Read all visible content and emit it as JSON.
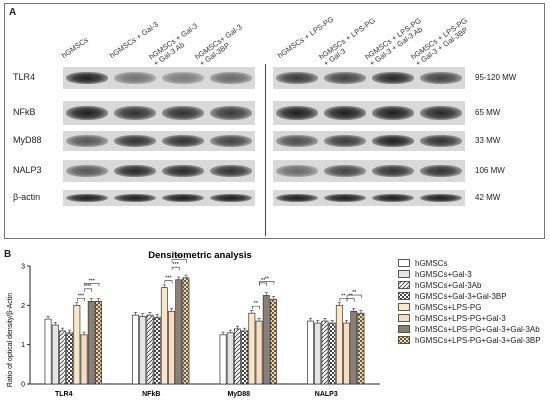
{
  "panel_a": {
    "label": "A",
    "lanes_left": [
      "hGMSCs",
      "hGMSCs + Gal-3",
      "hGMSCs + Gal-3\n+ Gal-3 Ab",
      "hGMSCs+ Gal-3\n+ Gal-3BP"
    ],
    "lanes_right": [
      "hGMSCs + LPS-PG",
      "hGMSCs + LPS-PG\n+ Gal-3",
      "hGMSCs + LPS-PG\n+ Gal-3 + Gal-3 Ab",
      "hGMSCs + LPS-PG\n+ Gal-3 + Gal-3BP"
    ],
    "rows": [
      {
        "marker": "TLR4",
        "mw": "95-120 MW"
      },
      {
        "marker": "NFkB",
        "mw": "65 MW"
      },
      {
        "marker": "MyD88",
        "mw": "33 MW"
      },
      {
        "marker": "NALP3",
        "mw": "106 MW"
      },
      {
        "marker": "β-actin",
        "mw": "42 MW"
      }
    ]
  },
  "panel_b": {
    "label": "B"
  },
  "chart_data": {
    "type": "bar",
    "title": "Densitometric analysis",
    "xlabel": "",
    "ylabel": "Ratio of optical density/β-Actin",
    "ylim": [
      0,
      3
    ],
    "yticks": [
      "0",
      "1",
      "2",
      "3"
    ],
    "categories": [
      "TLR4",
      "NFkB",
      "MyD88",
      "NALP3"
    ],
    "series": [
      {
        "name": "hGMSCs",
        "pattern": "white",
        "values": [
          1.65,
          1.75,
          1.25,
          1.6
        ]
      },
      {
        "name": "hGMSCs+Gal-3",
        "pattern": "lightgray",
        "values": [
          1.5,
          1.72,
          1.3,
          1.55
        ]
      },
      {
        "name": "hGMSCs+Gal-3Ab",
        "pattern": "hatch",
        "values": [
          1.35,
          1.75,
          1.4,
          1.6
        ]
      },
      {
        "name": "hGMSCs+Gal-3+Gal-3BP",
        "pattern": "checker",
        "values": [
          1.3,
          1.7,
          1.35,
          1.55
        ]
      },
      {
        "name": "hGMSCs+LPS-PG",
        "pattern": "cream",
        "values": [
          2.0,
          2.45,
          1.8,
          2.0
        ]
      },
      {
        "name": "hGMSCs+LPS-PG+Gal-3",
        "pattern": "peach",
        "values": [
          1.25,
          1.85,
          1.6,
          1.55
        ]
      },
      {
        "name": "hGMSCs+LPS-PG+Gal-3+Gal-3Ab",
        "pattern": "darkgray",
        "values": [
          2.1,
          2.65,
          2.25,
          1.85
        ]
      },
      {
        "name": "hGMSCs+LPS-PG+Gal-3+Gal-3BP",
        "pattern": "checker-tan",
        "values": [
          2.1,
          2.7,
          2.15,
          1.8
        ]
      }
    ],
    "significance_label": "***",
    "significance_labels_alt": "**",
    "legend_position": "right",
    "grid": false
  }
}
